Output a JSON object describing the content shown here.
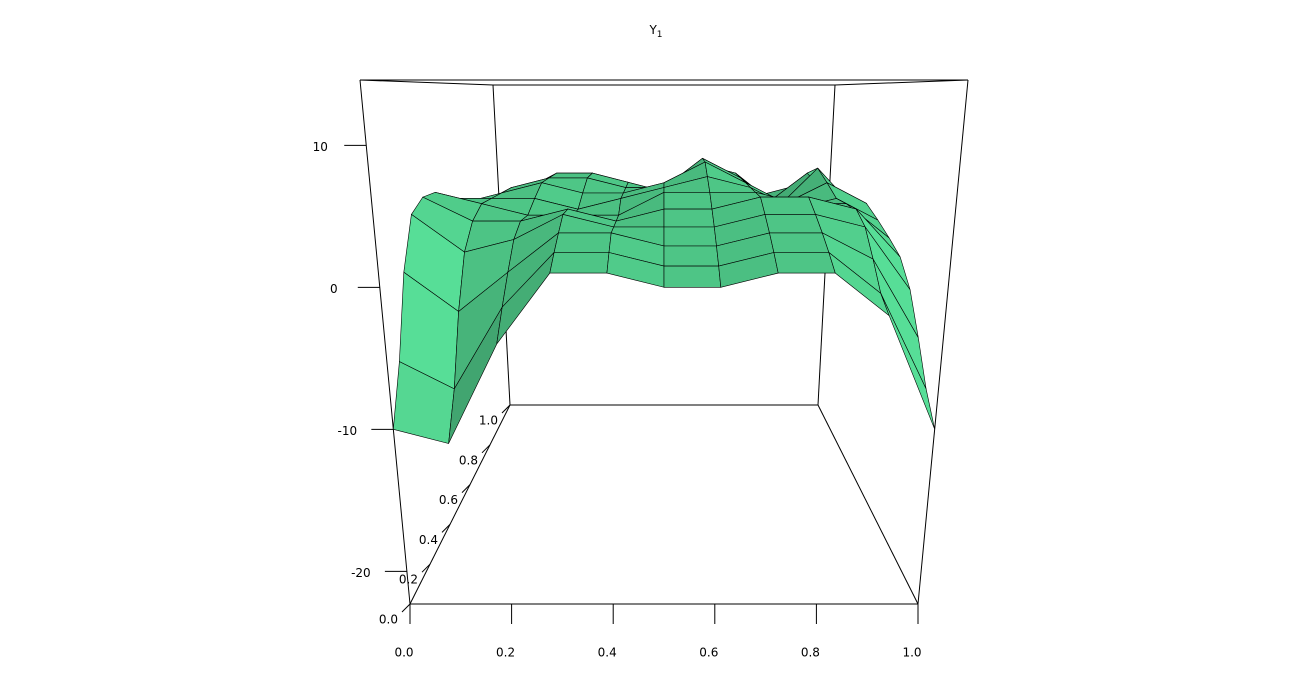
{
  "chart_data": {
    "type": "surface",
    "title": "Y",
    "title_subscript": "1",
    "color": "#4cc183",
    "x": [
      0,
      0.1,
      0.2,
      0.3,
      0.4,
      0.5,
      0.6,
      0.7,
      0.8,
      0.9,
      1
    ],
    "y": [
      0,
      0.1,
      0.2,
      0.3,
      0.4,
      0.5,
      0.6,
      0.7,
      0.8,
      0.9,
      1
    ],
    "z": [
      [
        -10,
        -11,
        -4,
        1,
        1,
        0,
        0,
        1,
        1,
        -2,
        -10
      ],
      [
        -6,
        -8,
        -2,
        2,
        2,
        1,
        1,
        2,
        2,
        -1,
        -8
      ],
      [
        0,
        -3,
        0,
        3,
        3,
        2,
        2,
        3,
        3,
        1,
        -5
      ],
      [
        4,
        1,
        2,
        4,
        3,
        3,
        3,
        4,
        4,
        3,
        -2
      ],
      [
        5,
        3,
        3,
        4,
        3,
        4,
        4,
        5,
        5,
        4,
        0
      ],
      [
        5,
        4,
        3,
        3,
        3,
        5,
        5,
        5,
        4,
        4,
        1
      ],
      [
        4,
        4,
        4,
        3,
        4,
        5,
        6,
        5,
        3,
        4,
        2
      ],
      [
        3,
        4,
        5,
        4,
        4,
        5,
        7,
        5,
        3,
        5,
        3
      ],
      [
        2,
        4,
        5,
        5,
        4,
        4,
        7,
        5,
        2,
        6,
        2
      ],
      [
        1,
        3,
        5,
        5,
        4,
        3,
        6,
        5,
        2,
        5,
        1
      ],
      [
        0,
        2,
        4,
        4,
        3,
        2,
        5,
        4,
        2,
        3,
        0
      ]
    ],
    "xlim": [
      0,
      1
    ],
    "ylim": [
      0,
      1
    ],
    "zlim": [
      -22.3,
      14.6
    ],
    "xticks": [
      {
        "value": 0,
        "label": "0.0"
      },
      {
        "value": 0.2,
        "label": "0.2"
      },
      {
        "value": 0.4,
        "label": "0.4"
      },
      {
        "value": 0.6,
        "label": "0.6"
      },
      {
        "value": 0.8,
        "label": "0.8"
      },
      {
        "value": 1,
        "label": "1.0"
      }
    ],
    "yticks": [
      {
        "value": 0,
        "label": "0.0"
      },
      {
        "value": 0.2,
        "label": "0.2"
      },
      {
        "value": 0.4,
        "label": "0.4"
      },
      {
        "value": 0.6,
        "label": "0.6"
      },
      {
        "value": 0.8,
        "label": "0.8"
      },
      {
        "value": 1,
        "label": "1.0"
      }
    ],
    "zticks": [
      -20,
      -10,
      0,
      10
    ]
  }
}
